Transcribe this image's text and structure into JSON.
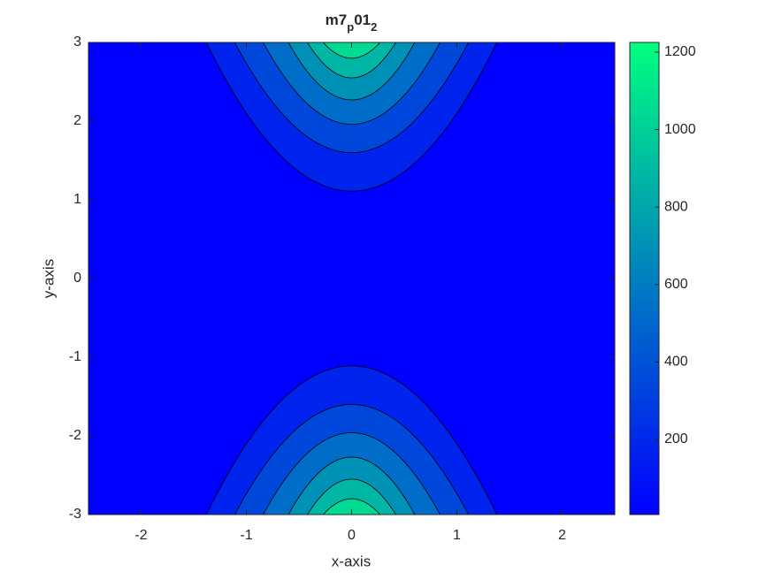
{
  "chart_data": {
    "type": "contourf",
    "title": [
      {
        "text": "m7"
      },
      {
        "text": "p",
        "subscript": true
      },
      {
        "text": "01"
      },
      {
        "text": "2",
        "subscript": true
      }
    ],
    "x_label": "x-axis",
    "y_label": "y-axis",
    "xlim": [
      -2.5,
      2.5
    ],
    "ylim": [
      -3,
      3
    ],
    "xticks": [
      -2,
      -1,
      0,
      1,
      2
    ],
    "yticks": [
      -3,
      -2,
      -1,
      0,
      1,
      2,
      3
    ],
    "colormap": "winter",
    "clim": [
      6,
      1225
    ],
    "cticks": [
      200,
      400,
      600,
      800,
      1000,
      1200
    ],
    "base_level": 6,
    "contours": [
      {
        "level": 175,
        "y_vertex": [
          1.11,
          -1.11
        ],
        "x_edge": 1.38
      },
      {
        "level": 350,
        "y_vertex": [
          1.6,
          -1.6
        ],
        "x_edge": 1.11
      },
      {
        "level": 525,
        "y_vertex": [
          1.96,
          -1.96
        ],
        "x_edge": 0.84
      },
      {
        "level": 700,
        "y_vertex": [
          2.27,
          -2.27
        ],
        "x_edge": 0.6
      },
      {
        "level": 875,
        "y_vertex": [
          2.55,
          -2.55
        ],
        "x_edge": 0.42
      },
      {
        "level": 1050,
        "y_vertex": [
          2.8,
          -2.8
        ],
        "x_edge": 0.27
      }
    ]
  }
}
